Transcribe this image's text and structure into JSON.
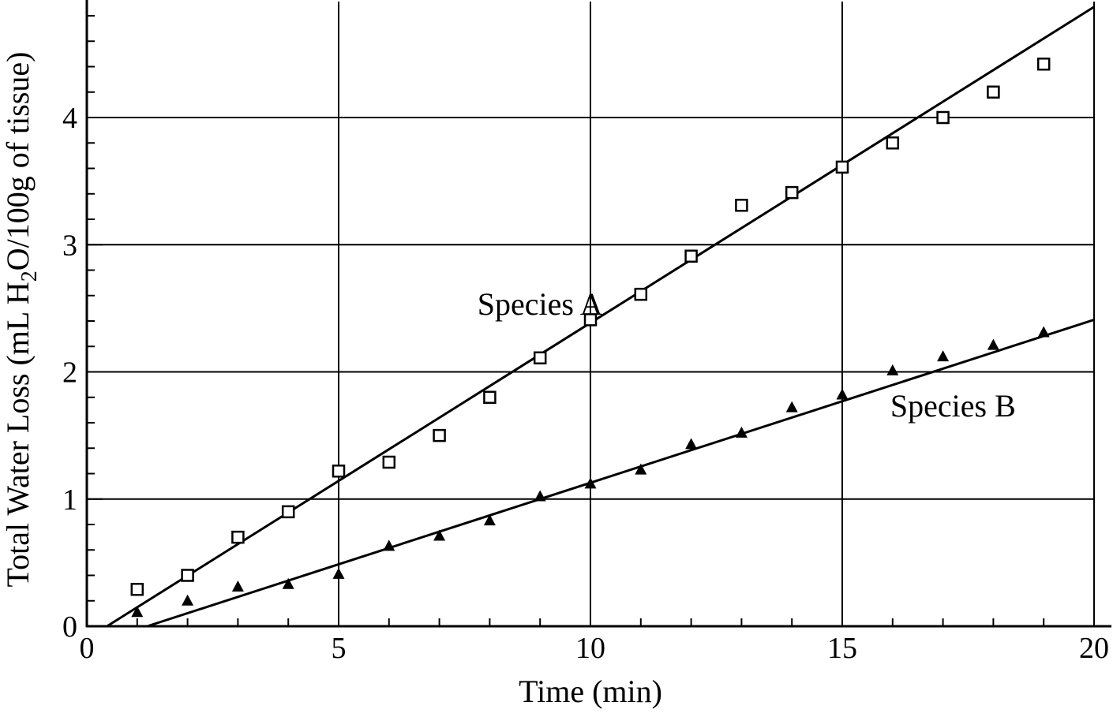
{
  "chart_data": {
    "type": "scatter",
    "xlabel": "Time (min)",
    "ylabel": {
      "prefix": "Total Water Loss (mL H",
      "subscript": "2",
      "suffix": "O/100g of tissue)"
    },
    "xlim": [
      0,
      20
    ],
    "ylim": [
      0,
      4.9
    ],
    "xticks": [
      0,
      5,
      10,
      15,
      20
    ],
    "yticks": [
      0,
      1,
      2,
      3,
      4
    ],
    "grid": true,
    "series": [
      {
        "name": "Species A",
        "marker": "open-square",
        "x": [
          1,
          2,
          3,
          4,
          5,
          6,
          7,
          8,
          9,
          10,
          11,
          12,
          13,
          14,
          15,
          16,
          17,
          18,
          19
        ],
        "y": [
          0.29,
          0.4,
          0.7,
          0.9,
          1.22,
          1.29,
          1.5,
          1.8,
          2.11,
          2.41,
          2.61,
          2.91,
          3.31,
          3.41,
          3.61,
          3.8,
          4.0,
          4.2,
          4.42
        ],
        "fit_line": {
          "x": [
            0.4,
            20
          ],
          "y": [
            0.0,
            4.87
          ]
        },
        "label_position": {
          "x": 9.0,
          "y": 2.45
        }
      },
      {
        "name": "Species B",
        "marker": "filled-triangle",
        "x": [
          1,
          2,
          3,
          4,
          5,
          6,
          7,
          8,
          9,
          10,
          11,
          12,
          13,
          14,
          15,
          16,
          17,
          18,
          19
        ],
        "y": [
          0.11,
          0.2,
          0.31,
          0.33,
          0.41,
          0.63,
          0.71,
          0.83,
          1.02,
          1.12,
          1.23,
          1.43,
          1.52,
          1.72,
          1.82,
          2.01,
          2.12,
          2.21,
          2.31
        ],
        "fit_line": {
          "x": [
            1.2,
            20
          ],
          "y": [
            0.0,
            2.41
          ]
        },
        "label_position": {
          "x": 17.2,
          "y": 1.65
        }
      }
    ]
  }
}
